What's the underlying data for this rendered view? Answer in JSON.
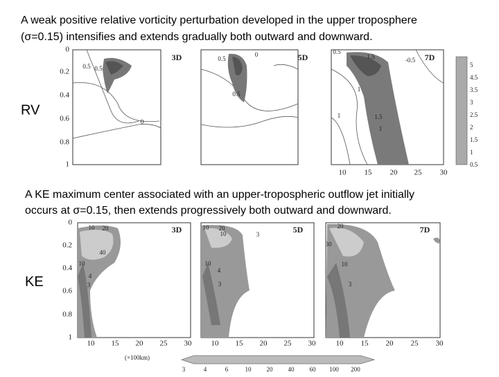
{
  "rv_section": {
    "caption_lines": [
      "A weak positive relative vorticity perturbation developed in the upper troposphere",
      "(σ=0.15) intensifies and extends gradually both outward and downward."
    ],
    "label": "RV",
    "panel_titles": [
      "3D",
      "5D",
      "7D"
    ],
    "yticks": [
      "0",
      "0.2",
      "0.4",
      "0.6",
      "0.8",
      "1"
    ],
    "xticks": [
      "10",
      "15",
      "20",
      "25",
      "30"
    ],
    "colorbar_labels": [
      "5",
      "4.5",
      "3.5",
      "3",
      "2.5",
      "2",
      "1.5",
      "1",
      "0.5"
    ],
    "contour_labels": [
      "0.5",
      "0.5",
      "0",
      "0",
      "0.5",
      "0.5",
      "0.5",
      "1.5",
      "-0.5",
      "1",
      "1",
      "1.5",
      "1"
    ]
  },
  "ke_section": {
    "caption_lines": [
      "A KE maximum center associated with an upper-tropospheric outflow jet initially",
      "occurs at σ=0.15, then extends progressively both outward and downward."
    ],
    "label": "KE",
    "panel_titles": [
      "3D",
      "5D",
      "7D"
    ],
    "yticks": [
      "0",
      "0.2",
      "0.4",
      "0.6",
      "0.8",
      "1"
    ],
    "xticks": [
      "10",
      "15",
      "20",
      "25",
      "30"
    ],
    "x_unit": "(×100km)",
    "colorbar_labels": [
      "3",
      "4",
      "6",
      "10",
      "20",
      "40",
      "60",
      "100",
      "200"
    ],
    "contour_labels": [
      "10",
      "20",
      "40",
      "10",
      "4",
      "3",
      "10",
      "20",
      "10",
      "3",
      "10",
      "4",
      "3",
      "20",
      "30",
      "10",
      "3"
    ]
  }
}
